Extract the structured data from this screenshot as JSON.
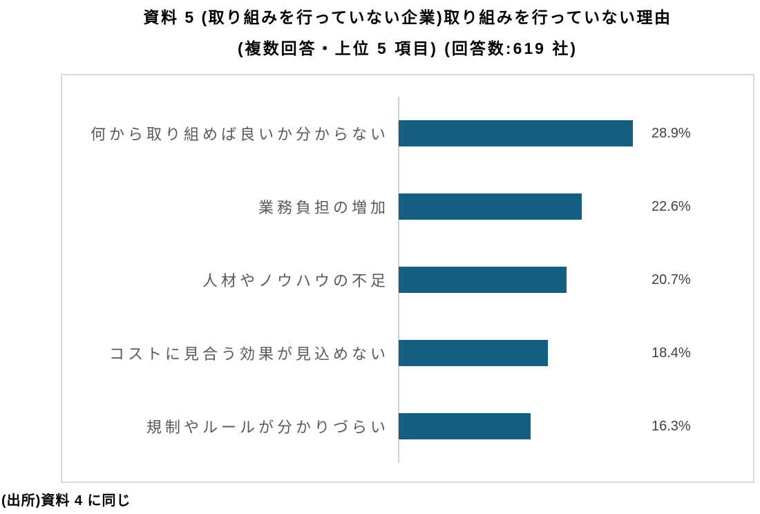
{
  "chart_data": {
    "type": "bar",
    "orientation": "horizontal",
    "title": "資料 5 (取り組みを行っていない企業)取り組みを行っていない理由",
    "subtitle": "(複数回答・上位 5 項目) (回答数:619 社)",
    "categories": [
      "何から取り組めば良いか分からない",
      "業務負担の増加",
      "人材やノウハウの不足",
      "コストに見合う効果が見込めない",
      "規制やルールが分かりづらい"
    ],
    "values": [
      28.9,
      22.6,
      20.7,
      18.4,
      16.3
    ],
    "value_labels": [
      "28.9%",
      "22.6%",
      "20.7%",
      "18.4%",
      "16.3%"
    ],
    "xlim": [
      0,
      30
    ],
    "grid": false,
    "legend": false,
    "bar_color": "#156082",
    "frame_color": "#D9D9D9",
    "axis_line_color": "#D0CECE",
    "category_label_color": "#595959",
    "value_label_color": "#404040"
  },
  "source": "(出所)資料 4 に同じ"
}
